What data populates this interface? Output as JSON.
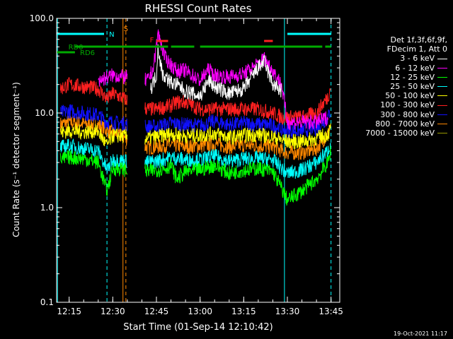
{
  "chart_data": {
    "type": "line",
    "title": "RHESSI Count Rates",
    "xlabel": "Start Time (01-Sep-14 12:10:42)",
    "ylabel": "Count Rate (s⁻¹ detector segment⁻¹)",
    "yscale": "log",
    "ylim": [
      0.1,
      100.0
    ],
    "xlim": [
      "12:10:42",
      "13:48:00"
    ],
    "y_ticks": [
      "0.1",
      "1.0",
      "10.0",
      "100.0"
    ],
    "x_ticks": [
      "12:15",
      "12:30",
      "12:45",
      "13:00",
      "13:15",
      "13:30",
      "13:45"
    ],
    "legend": {
      "header": [
        "Det 1f,3f,6f,9f,",
        "FDecim 1, Att 0"
      ],
      "placement": "right"
    },
    "series": [
      {
        "name": "3 - 6 keV",
        "color": "#ffffff",
        "points": [
          [
            "12:43",
            18
          ],
          [
            "12:45",
            25
          ],
          [
            "12:45:30",
            50
          ],
          [
            "12:47",
            26
          ],
          [
            "12:50",
            21
          ],
          [
            "12:52",
            20
          ],
          [
            "12:55",
            17
          ],
          [
            "13:00",
            15
          ],
          [
            "13:03",
            22
          ],
          [
            "13:05",
            19
          ],
          [
            "13:10",
            16
          ],
          [
            "13:15",
            18
          ],
          [
            "13:20",
            30
          ],
          [
            "13:22",
            35
          ],
          [
            "13:25",
            20
          ],
          [
            "13:28",
            17
          ]
        ]
      },
      {
        "name": "6 - 12 keV",
        "color": "#ff00ff",
        "points": [
          [
            "12:12",
            null
          ],
          [
            "12:25",
            22
          ],
          [
            "12:30",
            25
          ],
          [
            "12:42",
            22
          ],
          [
            "12:44",
            30
          ],
          [
            "12:45:30",
            70
          ],
          [
            "12:48",
            38
          ],
          [
            "12:52",
            28
          ],
          [
            "12:55",
            28
          ],
          [
            "13:00",
            22
          ],
          [
            "13:03",
            29
          ],
          [
            "13:05",
            25
          ],
          [
            "13:10",
            24
          ],
          [
            "13:15",
            26
          ],
          [
            "13:20",
            33
          ],
          [
            "13:22",
            38
          ],
          [
            "13:25",
            28
          ],
          [
            "13:28",
            20
          ],
          [
            "13:30",
            8
          ],
          [
            "13:40",
            8
          ],
          [
            "13:44",
            9
          ]
        ]
      },
      {
        "name": "12 - 25 keV",
        "color": "#00ff00",
        "points": [
          [
            "12:12",
            3.2
          ],
          [
            "12:15",
            3.4
          ],
          [
            "12:20",
            3.3
          ],
          [
            "12:25",
            3.0
          ],
          [
            "12:28",
            1.5
          ],
          [
            "12:30",
            2.6
          ],
          [
            "12:42",
            2.4
          ],
          [
            "12:45",
            2.5
          ],
          [
            "12:48",
            2.6
          ],
          [
            "12:50",
            2.8
          ],
          [
            "12:52",
            2.0
          ],
          [
            "12:55",
            2.4
          ],
          [
            "13:00",
            2.5
          ],
          [
            "13:05",
            2.8
          ],
          [
            "13:10",
            2.3
          ],
          [
            "13:15",
            2.5
          ],
          [
            "13:20",
            2.6
          ],
          [
            "13:25",
            2.4
          ],
          [
            "13:28",
            1.6
          ],
          [
            "13:30",
            1.2
          ],
          [
            "13:35",
            1.5
          ],
          [
            "13:40",
            2.0
          ],
          [
            "13:44",
            3.0
          ],
          [
            "13:45",
            4.2
          ]
        ]
      },
      {
        "name": "25 - 50 keV",
        "color": "#00ffff",
        "points": [
          [
            "12:12",
            4.3
          ],
          [
            "12:15",
            4.5
          ],
          [
            "12:20",
            4.2
          ],
          [
            "12:25",
            4.0
          ],
          [
            "12:28",
            2.5
          ],
          [
            "12:30",
            3.2
          ],
          [
            "12:42",
            3.0
          ],
          [
            "12:45",
            3.1
          ],
          [
            "12:50",
            3.4
          ],
          [
            "12:55",
            3.2
          ],
          [
            "13:00",
            3.2
          ],
          [
            "13:05",
            3.5
          ],
          [
            "13:10",
            3.1
          ],
          [
            "13:15",
            3.3
          ],
          [
            "13:20",
            3.3
          ],
          [
            "13:25",
            3.2
          ],
          [
            "13:28",
            2.6
          ],
          [
            "13:30",
            2.3
          ],
          [
            "13:35",
            2.5
          ],
          [
            "13:40",
            3.0
          ],
          [
            "13:44",
            4.0
          ],
          [
            "13:45",
            5.0
          ]
        ]
      },
      {
        "name": "50 - 100 keV",
        "color": "#ffff00",
        "points": [
          [
            "12:12",
            6.2
          ],
          [
            "12:15",
            6.5
          ],
          [
            "12:20",
            6.3
          ],
          [
            "12:25",
            6.4
          ],
          [
            "12:28",
            4.5
          ],
          [
            "12:30",
            5.8
          ],
          [
            "12:42",
            5.4
          ],
          [
            "12:45",
            5.6
          ],
          [
            "12:50",
            6.0
          ],
          [
            "12:55",
            5.7
          ],
          [
            "13:00",
            5.8
          ],
          [
            "13:05",
            6.1
          ],
          [
            "13:10",
            5.5
          ],
          [
            "13:15",
            5.8
          ],
          [
            "13:20",
            5.9
          ],
          [
            "13:25",
            5.6
          ],
          [
            "13:28",
            5.2
          ],
          [
            "13:30",
            5.0
          ],
          [
            "13:35",
            5.0
          ],
          [
            "13:40",
            5.4
          ],
          [
            "13:44",
            6.0
          ],
          [
            "13:45",
            7.0
          ]
        ]
      },
      {
        "name": "100 - 300 keV",
        "color": "#ff2020",
        "points": [
          [
            "12:12",
            18
          ],
          [
            "12:15",
            20
          ],
          [
            "12:20",
            19
          ],
          [
            "12:25",
            18
          ],
          [
            "12:28",
            14
          ],
          [
            "12:30",
            16
          ],
          [
            "12:42",
            11
          ],
          [
            "12:45",
            11
          ],
          [
            "12:50",
            12
          ],
          [
            "12:52",
            13
          ],
          [
            "12:55",
            13
          ],
          [
            "13:00",
            11
          ],
          [
            "13:05",
            11
          ],
          [
            "13:10",
            11
          ],
          [
            "13:15",
            11
          ],
          [
            "13:20",
            11
          ],
          [
            "13:25",
            10
          ],
          [
            "13:28",
            9
          ],
          [
            "13:30",
            9
          ],
          [
            "13:35",
            9
          ],
          [
            "13:40",
            10
          ],
          [
            "13:44",
            15
          ],
          [
            "13:45",
            20
          ]
        ]
      },
      {
        "name": "300 - 800 keV",
        "color": "#1010ff",
        "points": [
          [
            "12:12",
            10
          ],
          [
            "12:15",
            10.5
          ],
          [
            "12:20",
            10
          ],
          [
            "12:25",
            9.5
          ],
          [
            "12:28",
            8
          ],
          [
            "12:30",
            8
          ],
          [
            "12:42",
            7.2
          ],
          [
            "12:45",
            7.2
          ],
          [
            "12:50",
            7.8
          ],
          [
            "12:55",
            7.5
          ],
          [
            "13:00",
            7.4
          ],
          [
            "13:05",
            8.2
          ],
          [
            "13:10",
            7.5
          ],
          [
            "13:15",
            7.8
          ],
          [
            "13:20",
            7.6
          ],
          [
            "13:25",
            7.4
          ],
          [
            "13:28",
            6.8
          ],
          [
            "13:30",
            6.5
          ],
          [
            "13:35",
            6.5
          ],
          [
            "13:40",
            7.0
          ],
          [
            "13:44",
            9.0
          ],
          [
            "13:45",
            11
          ]
        ]
      },
      {
        "name": "800 - 7000 keV",
        "color": "#ff8800",
        "points": [
          [
            "12:12",
            7.6
          ],
          [
            "12:15",
            8
          ],
          [
            "12:20",
            7.7
          ],
          [
            "12:25",
            7.5
          ],
          [
            "12:28",
            6.5
          ],
          [
            "12:30",
            6.2
          ],
          [
            "12:42",
            4.3
          ],
          [
            "12:45",
            4.4
          ],
          [
            "12:50",
            4.6
          ],
          [
            "12:55",
            4.4
          ],
          [
            "13:00",
            4.5
          ],
          [
            "13:05",
            4.7
          ],
          [
            "13:10",
            4.4
          ],
          [
            "13:15",
            4.6
          ],
          [
            "13:20",
            4.5
          ],
          [
            "13:25",
            4.4
          ],
          [
            "13:28",
            4.0
          ],
          [
            "13:30",
            3.8
          ],
          [
            "13:35",
            3.8
          ],
          [
            "13:40",
            4.2
          ],
          [
            "13:44",
            6.0
          ],
          [
            "13:45",
            7.5
          ]
        ]
      },
      {
        "name": "7000 - 15000 keV",
        "color": "#999900",
        "points": []
      }
    ],
    "annotations": [
      {
        "text": "N",
        "color": "#00ffff",
        "at": "12:28"
      },
      {
        "text": "S",
        "color": "#ff8800",
        "at": "12:33"
      },
      {
        "text": "F",
        "color": "#ff2020",
        "at": "12:42"
      },
      {
        "text": "RD0",
        "color": "#00aa00",
        "at": "12:14"
      },
      {
        "text": "RD6",
        "color": "#00aa00",
        "at": "12:18"
      }
    ],
    "event_intervals": [
      {
        "label": "night",
        "color": "#00ffff",
        "from": "12:10:42",
        "to": "12:27"
      },
      {
        "label": "night",
        "color": "#00ffff",
        "from": "13:30",
        "to": "13:45"
      },
      {
        "label": "flare",
        "color": "#ff2020",
        "from": "12:45",
        "to": "12:49"
      },
      {
        "label": "flare",
        "color": "#ff2020",
        "from": "13:22",
        "to": "13:25"
      },
      {
        "label": "RD0",
        "color": "#00aa00",
        "from": "12:17",
        "to": "12:49"
      },
      {
        "label": "RD0",
        "color": "#00aa00",
        "from": "12:50",
        "to": "12:58"
      },
      {
        "label": "RD0",
        "color": "#00aa00",
        "from": "13:00",
        "to": "13:42"
      },
      {
        "label": "RD0",
        "color": "#00aa00",
        "from": "13:43",
        "to": "13:45"
      },
      {
        "label": "RD6",
        "color": "#00aa00",
        "from": "12:10:42",
        "to": "12:17"
      }
    ],
    "vertical_markers": [
      {
        "at": "12:11",
        "color": "#00ffff",
        "style": "solid"
      },
      {
        "at": "12:28",
        "color": "#00ffff",
        "style": "dashed"
      },
      {
        "at": "12:33:30",
        "color": "#ff8800",
        "style": "solid"
      },
      {
        "at": "12:34:30",
        "color": "#ff8800",
        "style": "dashed"
      },
      {
        "at": "13:29",
        "color": "#00ffff",
        "style": "solid"
      },
      {
        "at": "13:45",
        "color": "#00ffff",
        "style": "dashed"
      }
    ],
    "data_gap": {
      "from": "12:35",
      "to": "12:41"
    }
  },
  "footer": {
    "timestamp": "19-Oct-2021 11:17"
  }
}
